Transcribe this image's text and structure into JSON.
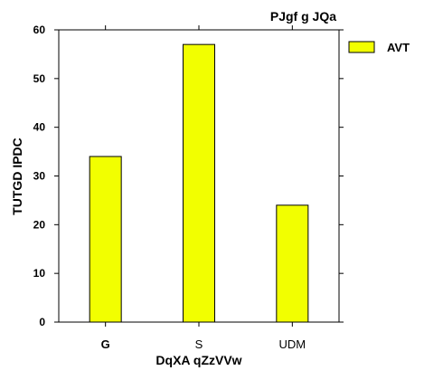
{
  "chart_data": {
    "type": "bar",
    "title": "PJgf g JQa",
    "xlabel": "DqXA qZzVVw",
    "ylabel": "TUTGD IPDC",
    "categories": [
      "G",
      "S",
      "UDM"
    ],
    "series": [
      {
        "name": "AVT",
        "values": [
          34,
          57,
          24
        ],
        "color": "#f2ff00"
      }
    ],
    "ylim": [
      0,
      60
    ],
    "yticks": [
      0,
      10,
      20,
      30,
      40,
      50,
      60
    ],
    "grid": false,
    "legend_position": "right"
  }
}
